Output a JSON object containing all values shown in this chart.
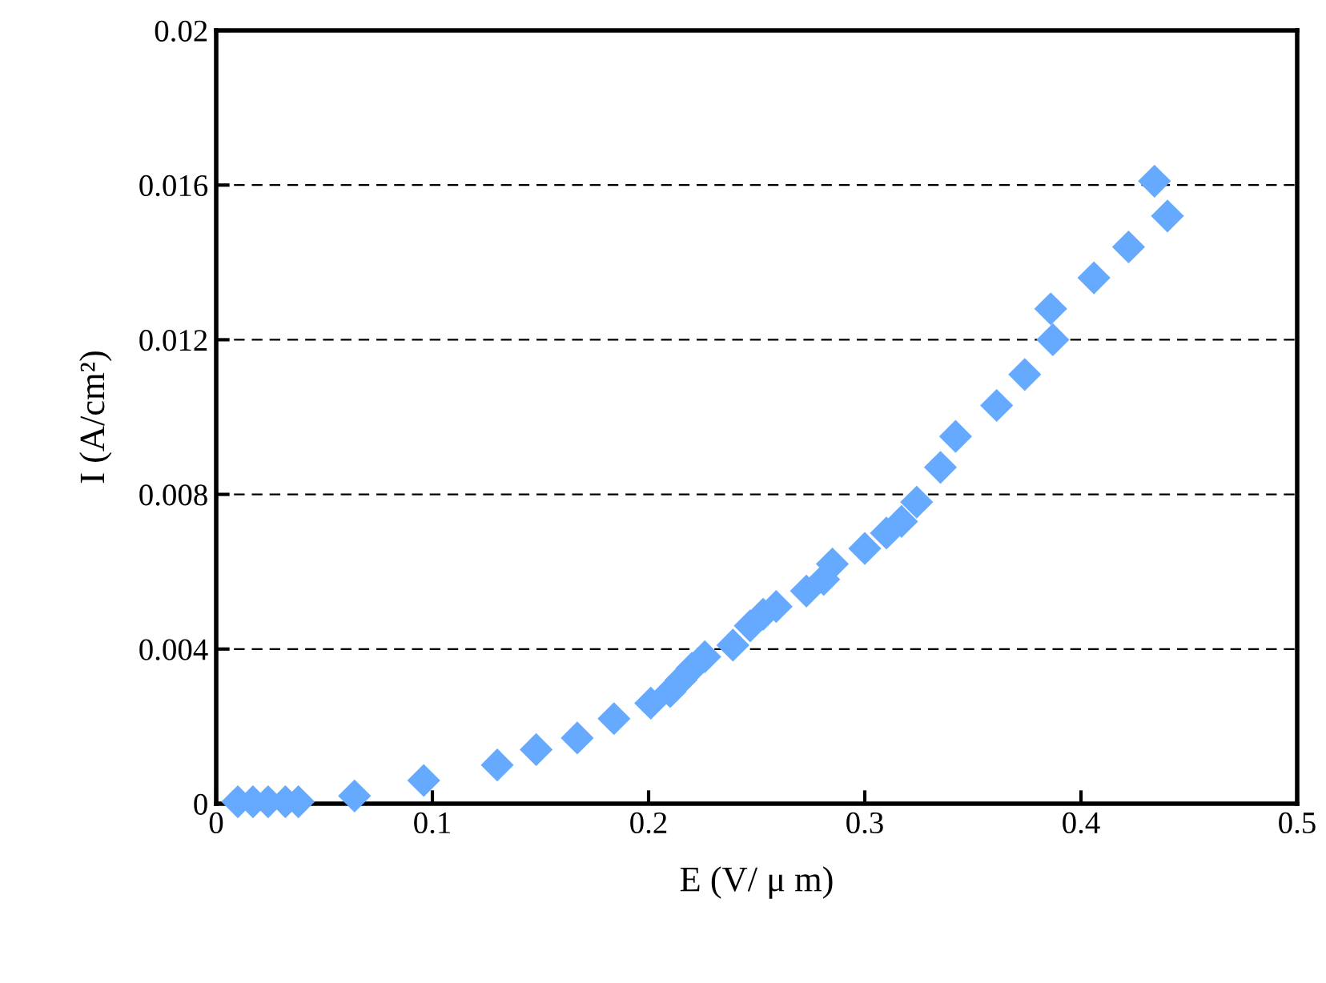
{
  "chart_data": {
    "type": "scatter",
    "xlabel": "E (V/ μ m)",
    "ylabel": "I (A/cm²)",
    "marker": "diamond",
    "grid": "y",
    "legend": false,
    "xlim": [
      0,
      0.5
    ],
    "xticks": [
      0,
      0.1,
      0.2,
      0.3,
      0.4,
      0.5
    ],
    "ylim": [
      0,
      0.02
    ],
    "yticks": [
      0,
      0.004,
      0.008,
      0.012,
      0.016,
      0.02
    ],
    "series": [
      {
        "color": "#66aaff",
        "x": [
          0.01,
          0.017,
          0.024,
          0.032,
          0.038,
          0.064,
          0.096,
          0.13,
          0.148,
          0.167,
          0.184,
          0.201,
          0.21,
          0.215,
          0.22,
          0.226,
          0.239,
          0.247,
          0.253,
          0.259,
          0.273,
          0.281,
          0.285,
          0.3,
          0.31,
          0.317,
          0.324,
          0.335,
          0.342,
          0.361,
          0.374,
          0.387,
          0.386,
          0.406,
          0.422,
          0.44,
          0.434
        ],
        "values": [
          5e-05,
          5e-05,
          5e-05,
          5e-05,
          5e-05,
          0.0002,
          0.0006,
          0.001,
          0.0014,
          0.0017,
          0.0022,
          0.0026,
          0.0029,
          0.0032,
          0.0035,
          0.0038,
          0.0041,
          0.0046,
          0.0049,
          0.0051,
          0.0055,
          0.0058,
          0.0062,
          0.0066,
          0.007,
          0.0073,
          0.0078,
          0.0087,
          0.0095,
          0.0103,
          0.0111,
          0.012,
          0.0128,
          0.0136,
          0.0144,
          0.0152,
          0.0161
        ]
      }
    ]
  }
}
